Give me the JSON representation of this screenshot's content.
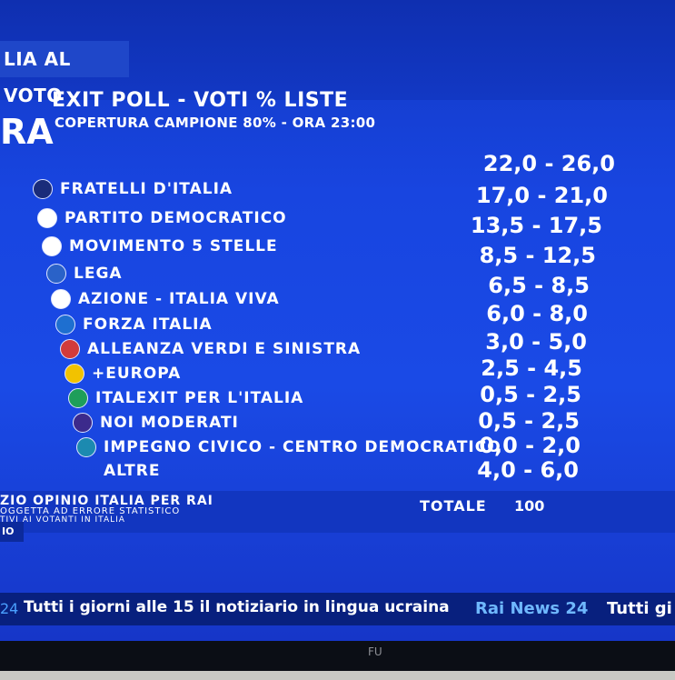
{
  "header": {
    "channel_tag": "LIA AL VOTO",
    "side_label": "RA",
    "title": "EXIT POLL - VOTI % LISTE",
    "subtitle": "COPERTURA CAMPIONE 80% - ORA 23:00"
  },
  "parties": [
    {
      "name": "FRATELLI D'ITALIA",
      "range": "22,0 - 26,0",
      "icon": "fratelli-italia-logo-icon",
      "color": "#1a2c7a"
    },
    {
      "name": "PARTITO DEMOCRATICO",
      "range": "17,0 - 21,0",
      "icon": "pd-logo-icon",
      "color": "#ffffff"
    },
    {
      "name": "MOVIMENTO 5 STELLE",
      "range": "13,5 - 17,5",
      "icon": "m5s-logo-icon",
      "color": "#ffffff"
    },
    {
      "name": "LEGA",
      "range": "8,5 - 12,5",
      "icon": "lega-logo-icon",
      "color": "#2a62c8"
    },
    {
      "name": "AZIONE - ITALIA VIVA",
      "range": "6,5 - 8,5",
      "icon": "azione-iv-logo-icon",
      "color": "#ffffff"
    },
    {
      "name": "FORZA ITALIA",
      "range": "6,0 - 8,0",
      "icon": "forza-italia-logo-icon",
      "color": "#1e6fd0"
    },
    {
      "name": "ALLEANZA VERDI E SINISTRA",
      "range": "3,0 - 5,0",
      "icon": "avs-logo-icon",
      "color": "#d23b3b"
    },
    {
      "name": "+EUROPA",
      "range": "2,5 - 4,5",
      "icon": "piu-europa-logo-icon",
      "color": "#f2c200"
    },
    {
      "name": "ITALEXIT PER L'ITALIA",
      "range": "0,5 - 2,5",
      "icon": "italexit-logo-icon",
      "color": "#1e9e5a"
    },
    {
      "name": "NOI MODERATI",
      "range": "0,5 - 2,5",
      "icon": "noi-moderati-logo-icon",
      "color": "#3c2a8c"
    },
    {
      "name": "IMPEGNO CIVICO - CENTRO DEMOCRATICO",
      "range": "0,0 - 2,0",
      "icon": "impegno-civico-logo-icon",
      "color": "#1c8ab0"
    },
    {
      "name": "ALTRE",
      "range": "4,0 - 6,0",
      "icon": "",
      "color": ""
    }
  ],
  "footer": {
    "source": "ZIO OPINIO ITALIA PER RAI",
    "note1": "OGGETTA AD ERRORE STATISTICO",
    "note2": "TIVI AI VOTANTI IN ITALIA",
    "total_label": "TOTALE",
    "total_value": "100",
    "chip": "IO"
  },
  "ticker": {
    "number": "24",
    "text": "Tutti i giorni alle 15 il notiziario in lingua ucraina",
    "brand": "Rai News 24",
    "tail": "Tutti gi"
  },
  "bezel": {
    "logo": "FU"
  }
}
